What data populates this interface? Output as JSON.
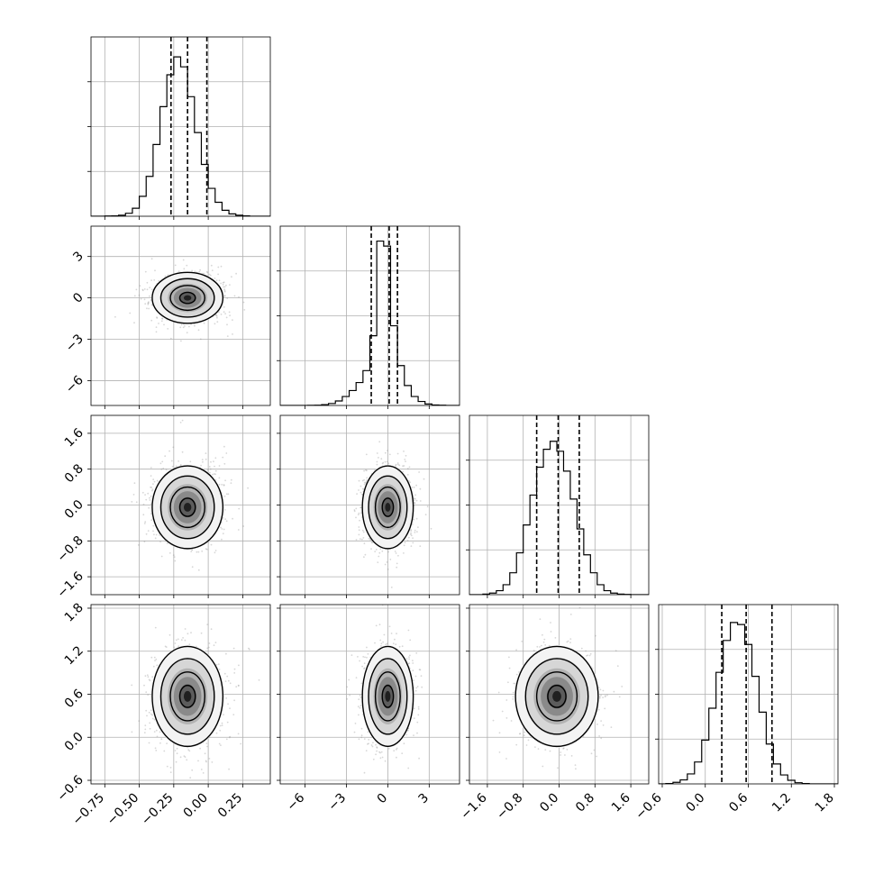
{
  "chart_data": {
    "type": "corner",
    "n_params": 4,
    "parameters": [
      {
        "range": [
          -0.85,
          0.45
        ],
        "ticks": [
          -0.75,
          -0.5,
          -0.25,
          0.0,
          0.25
        ],
        "tick_labels": [
          "−0.75",
          "−0.50",
          "−0.25",
          "0.00",
          "0.25"
        ],
        "mean": -0.15,
        "sd": 0.125,
        "quantiles": [
          -0.27,
          -0.15,
          -0.01
        ]
      },
      {
        "range": [
          -7.8,
          5.2
        ],
        "ticks": [
          -6,
          -3,
          0,
          3
        ],
        "tick_labels": [
          "−6",
          "−3",
          "0",
          "3"
        ],
        "mean": 0.0,
        "sd": 0.9,
        "quantiles": [
          -1.2,
          0.1,
          0.7
        ]
      },
      {
        "range": [
          -2.0,
          2.0
        ],
        "ticks": [
          -1.6,
          -0.8,
          0.0,
          0.8,
          1.6
        ],
        "tick_labels": [
          "−1.6",
          "−0.8",
          "0.0",
          "0.8",
          "1.6"
        ],
        "mean": -0.05,
        "sd": 0.45,
        "quantiles": [
          -0.5,
          -0.02,
          0.45
        ]
      },
      {
        "range": [
          -0.65,
          1.85
        ],
        "ticks": [
          -0.6,
          0.0,
          0.6,
          1.2,
          1.8
        ],
        "tick_labels": [
          "−0.6",
          "0.0",
          "0.6",
          "1.2",
          "1.8"
        ],
        "mean": 0.57,
        "sd": 0.34,
        "quantiles": [
          0.23,
          0.57,
          0.93
        ]
      }
    ],
    "histograms": [
      {
        "param": 0,
        "bin_edges": [
          -0.85,
          -0.8,
          -0.75,
          -0.7,
          -0.65,
          -0.6,
          -0.55,
          -0.5,
          -0.45,
          -0.4,
          -0.35,
          -0.3,
          -0.25,
          -0.2,
          -0.15,
          -0.1,
          -0.05,
          0.0,
          0.05,
          0.1,
          0.15,
          0.2,
          0.25,
          0.3,
          0.35,
          0.4,
          0.45
        ],
        "counts": [
          0,
          0,
          1,
          2,
          5,
          15,
          40,
          100,
          200,
          360,
          550,
          710,
          800,
          750,
          600,
          420,
          260,
          140,
          70,
          30,
          12,
          5,
          2,
          0,
          0,
          0
        ],
        "ylim": [
          0,
          900
        ]
      },
      {
        "param": 1,
        "bin_edges": [
          -7.8,
          -7.3,
          -6.8,
          -6.3,
          -5.8,
          -5.3,
          -4.8,
          -4.3,
          -3.8,
          -3.3,
          -2.8,
          -2.3,
          -1.8,
          -1.3,
          -0.8,
          -0.3,
          0.2,
          0.7,
          1.2,
          1.7,
          2.2,
          2.7,
          3.2,
          3.7,
          4.2,
          4.7,
          5.2
        ],
        "counts": [
          0,
          0,
          0,
          0,
          1,
          3,
          8,
          20,
          45,
          90,
          150,
          230,
          350,
          700,
          1650,
          1600,
          800,
          400,
          200,
          90,
          40,
          15,
          5,
          2,
          0,
          0
        ],
        "ylim": [
          0,
          1800
        ]
      },
      {
        "param": 2,
        "bin_edges": [
          -2.0,
          -1.85,
          -1.7,
          -1.55,
          -1.4,
          -1.25,
          -1.1,
          -0.95,
          -0.8,
          -0.65,
          -0.5,
          -0.35,
          -0.2,
          -0.05,
          0.1,
          0.25,
          0.4,
          0.55,
          0.7,
          0.85,
          1.0,
          1.15,
          1.3,
          1.45,
          1.6,
          1.75,
          1.9,
          2.05
        ],
        "counts": [
          0,
          0,
          3,
          8,
          20,
          50,
          110,
          210,
          350,
          500,
          640,
          730,
          770,
          720,
          620,
          480,
          330,
          200,
          110,
          50,
          20,
          8,
          3,
          1,
          0,
          0,
          0
        ],
        "ylim": [
          0,
          900
        ]
      },
      {
        "param": 3,
        "bin_edges": [
          -0.65,
          -0.55,
          -0.45,
          -0.35,
          -0.25,
          -0.15,
          -0.05,
          0.05,
          0.15,
          0.25,
          0.35,
          0.45,
          0.55,
          0.65,
          0.75,
          0.85,
          0.95,
          1.05,
          1.15,
          1.25,
          1.35,
          1.45,
          1.55,
          1.65,
          1.75,
          1.85
        ],
        "counts": [
          0,
          2,
          8,
          20,
          50,
          110,
          220,
          380,
          560,
          720,
          810,
          800,
          700,
          540,
          360,
          200,
          100,
          45,
          18,
          6,
          2,
          0,
          0,
          0,
          0
        ],
        "ylim": [
          0,
          900
        ]
      }
    ],
    "contour_levels_sigma": [
      0.5,
      1.0,
      1.5,
      2.0
    ],
    "quantiles_line_style": "dashed",
    "grid": true,
    "xlabel": "",
    "ylabel": "",
    "title": ""
  }
}
